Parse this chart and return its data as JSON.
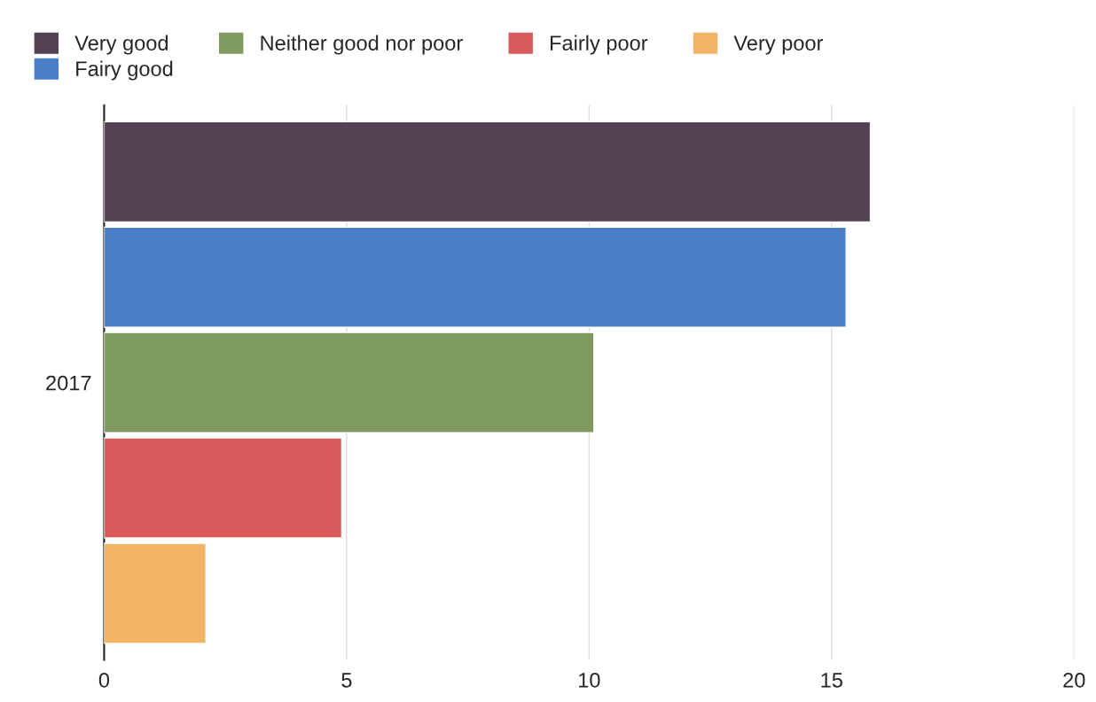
{
  "chart_data": {
    "type": "bar",
    "orientation": "horizontal",
    "categories": [
      "2017"
    ],
    "series": [
      {
        "name": "Very good",
        "color": "#524254",
        "values": [
          15.8
        ]
      },
      {
        "name": "Fairy good",
        "color": "#4a7ec6",
        "values": [
          15.3
        ]
      },
      {
        "name": "Neither good nor poor",
        "color": "#7f9a60",
        "values": [
          10.1
        ]
      },
      {
        "name": "Fairly poor",
        "color": "#d95a5a",
        "values": [
          4.9
        ]
      },
      {
        "name": "Very poor",
        "color": "#f2b363",
        "values": [
          2.1
        ]
      }
    ],
    "xlim": [
      0,
      20
    ],
    "xticks": [
      0,
      5,
      10,
      15,
      20
    ],
    "grid": "x",
    "legend": "top"
  }
}
